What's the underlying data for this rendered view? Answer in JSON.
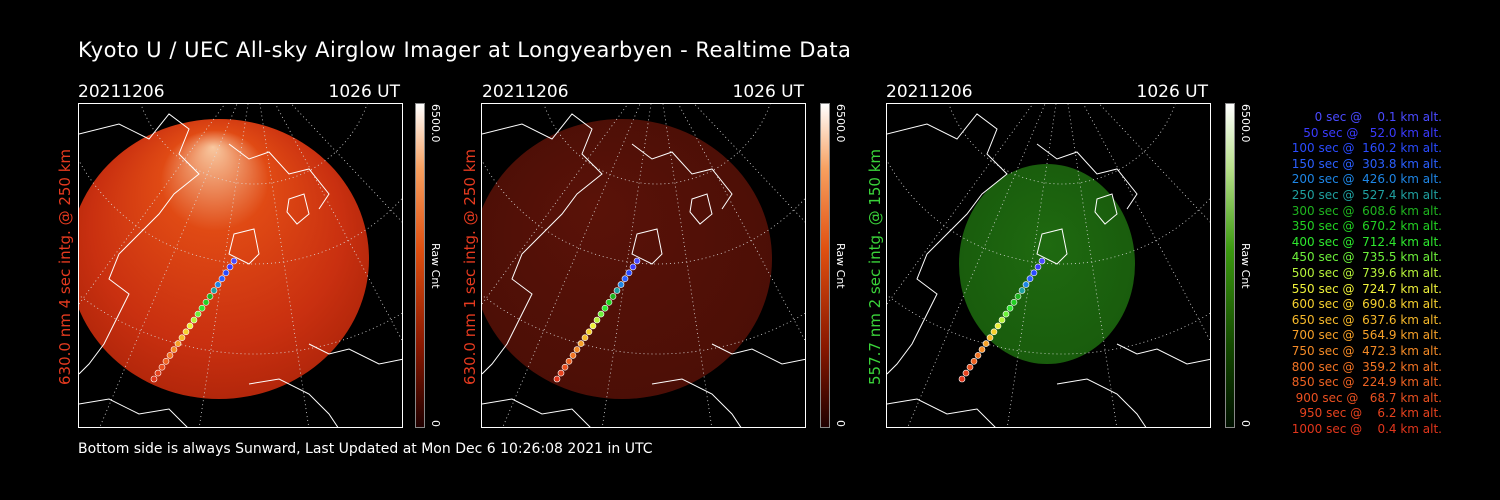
{
  "title": "Kyoto U / UEC All-sky Airglow Imager at Longyearbyen - Realtime Data",
  "footer": "Bottom side is always Sunward, Last Updated at Mon Dec  6 10:26:08 2021 in UTC",
  "panels": [
    {
      "date": "20211206",
      "ut": "1026 UT",
      "ylabel": "630.0 nm 4 sec intg. @ 250 km",
      "label_color": "#e53a1f",
      "cbar_max": "6500.0",
      "cbar_min": "0",
      "cbar_title": "Raw Cnt",
      "theme": "red-bright"
    },
    {
      "date": "20211206",
      "ut": "1026 UT",
      "ylabel": "630.0 nm 1 sec intg. @ 250 km",
      "label_color": "#e53a1f",
      "cbar_max": "6500.0",
      "cbar_min": "0",
      "cbar_title": "Raw Cnt",
      "theme": "red-dim"
    },
    {
      "date": "20211206",
      "ut": "1026 UT",
      "ylabel": "557.7 nm 2 sec intg. @ 150 km",
      "label_color": "#3ad33a",
      "cbar_max": "6500.0",
      "cbar_min": "0",
      "cbar_title": "Raw Cnt",
      "theme": "green"
    }
  ],
  "legend": [
    {
      "text": "   0 sec @    0.1 km alt.",
      "color": "#4a4aff"
    },
    {
      "text": "  50 sec @   52.0 km alt.",
      "color": "#3a3aff"
    },
    {
      "text": " 100 sec @  160.2 km alt.",
      "color": "#2a4bff"
    },
    {
      "text": " 150 sec @  303.8 km alt.",
      "color": "#2a5fff"
    },
    {
      "text": " 200 sec @  426.0 km alt.",
      "color": "#1e86e6"
    },
    {
      "text": " 250 sec @  527.4 km alt.",
      "color": "#1fa0a0"
    },
    {
      "text": " 300 sec @  608.6 km alt.",
      "color": "#1fb41f"
    },
    {
      "text": " 350 sec @  670.2 km alt.",
      "color": "#22d022"
    },
    {
      "text": " 400 sec @  712.4 km alt.",
      "color": "#2ee82e"
    },
    {
      "text": " 450 sec @  735.5 km alt.",
      "color": "#6cf03a"
    },
    {
      "text": " 500 sec @  739.6 km alt.",
      "color": "#b6f23a"
    },
    {
      "text": " 550 sec @  724.7 km alt.",
      "color": "#eef03a"
    },
    {
      "text": " 600 sec @  690.8 km alt.",
      "color": "#f6d02e"
    },
    {
      "text": " 650 sec @  637.6 km alt.",
      "color": "#f6b82a"
    },
    {
      "text": " 700 sec @  564.9 km alt.",
      "color": "#f6a028"
    },
    {
      "text": " 750 sec @  472.3 km alt.",
      "color": "#f48a26"
    },
    {
      "text": " 800 sec @  359.2 km alt.",
      "color": "#f27424"
    },
    {
      "text": " 850 sec @  224.9 km alt.",
      "color": "#ee6222"
    },
    {
      "text": " 900 sec @   68.7 km alt.",
      "color": "#ea5020"
    },
    {
      "text": " 950 sec @    6.2 km alt.",
      "color": "#e6421e"
    },
    {
      "text": "1000 sec @    0.4 km alt.",
      "color": "#e2361c"
    }
  ]
}
